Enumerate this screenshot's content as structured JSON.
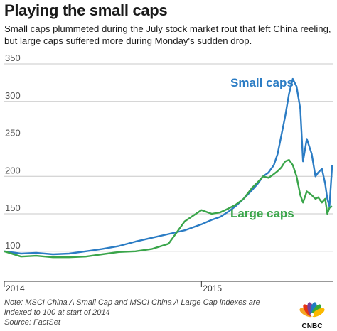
{
  "header": {
    "title": "Playing the small caps",
    "subtitle": "Small caps plummeted during the July stock market rout that left China reeling, but large caps suffered more during Monday's sudden drop."
  },
  "footer": {
    "note": "Note: MSCI China A Small Cap and MSCI China A Large Cap indexes are indexed to 100 at start of 2014",
    "source": "Source: FactSet"
  },
  "logo": {
    "name": "CNBC",
    "colors": [
      "#f5a623",
      "#e63312",
      "#7b3f98",
      "#1f7cc1",
      "#3aa935",
      "#fbb900"
    ]
  },
  "chart_data": {
    "type": "line",
    "title": "Playing the small caps",
    "x_ticks": [
      "2014",
      "2015"
    ],
    "x_range": [
      "2014-01",
      "2015-08"
    ],
    "ylim": [
      60,
      350
    ],
    "y_ticks": [
      100,
      150,
      200,
      250,
      300,
      350
    ],
    "grid": true,
    "colors": {
      "small": "#2b7cc4",
      "large": "#3aa54a"
    },
    "x": [
      "2014-01-01",
      "2014-02-01",
      "2014-03-01",
      "2014-04-01",
      "2014-05-01",
      "2014-06-01",
      "2014-07-01",
      "2014-08-01",
      "2014-09-01",
      "2014-10-01",
      "2014-11-01",
      "2014-12-01",
      "2015-01-01",
      "2015-01-20",
      "2015-02-05",
      "2015-02-20",
      "2015-03-05",
      "2015-03-20",
      "2015-04-05",
      "2015-04-15",
      "2015-04-25",
      "2015-05-05",
      "2015-05-15",
      "2015-05-22",
      "2015-05-29",
      "2015-06-05",
      "2015-06-12",
      "2015-06-19",
      "2015-06-26",
      "2015-07-03",
      "2015-07-08",
      "2015-07-15",
      "2015-07-24",
      "2015-07-31",
      "2015-08-05",
      "2015-08-12",
      "2015-08-18",
      "2015-08-22",
      "2015-08-26",
      "2015-08-31"
    ],
    "series": [
      {
        "name": "Small caps",
        "values": [
          100,
          97,
          98,
          96,
          97,
          100,
          103,
          107,
          113,
          118,
          123,
          128,
          136,
          142,
          146,
          153,
          160,
          170,
          182,
          190,
          200,
          205,
          215,
          230,
          255,
          280,
          310,
          330,
          320,
          290,
          220,
          250,
          230,
          200,
          205,
          210,
          190,
          170,
          160,
          215
        ]
      },
      {
        "name": "Large caps",
        "values": [
          100,
          93,
          94,
          92,
          92,
          93,
          96,
          99,
          100,
          103,
          110,
          140,
          155,
          150,
          152,
          157,
          162,
          170,
          185,
          192,
          200,
          198,
          203,
          207,
          212,
          220,
          222,
          215,
          200,
          175,
          165,
          180,
          175,
          170,
          172,
          165,
          170,
          150,
          158,
          160
        ]
      }
    ]
  }
}
